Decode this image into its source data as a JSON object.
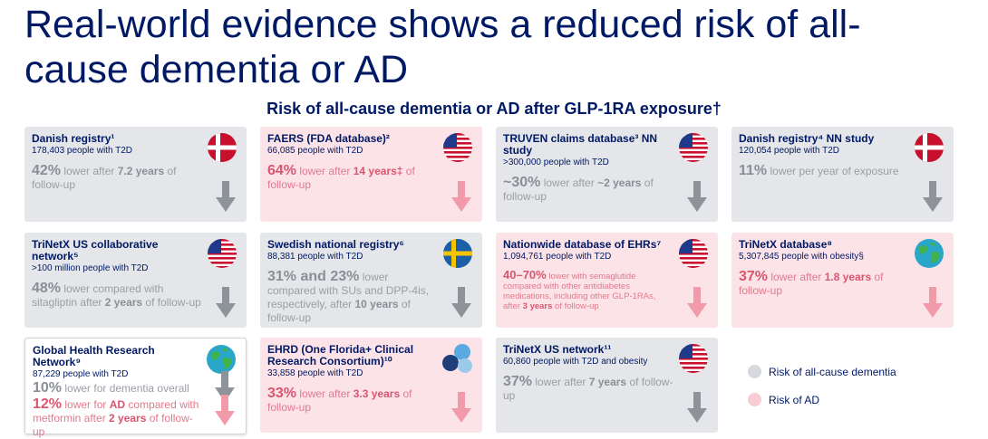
{
  "title": "Real-world evidence shows a reduced risk of all-cause dementia or AD",
  "subtitle": "Risk of all-cause dementia or AD after GLP-1RA exposure†",
  "cards": [
    {
      "name": "Danish registry¹",
      "detail": "178,403 people with T2D",
      "icon": "denmark",
      "results": [
        {
          "risk": "dementia",
          "segments": [
            "42%",
            " lower after ",
            "7.2 years",
            " of follow-up"
          ]
        }
      ]
    },
    {
      "name": "FAERS (FDA database)²",
      "detail": "66,085 people with T2D",
      "icon": "usa",
      "results": [
        {
          "risk": "AD",
          "segments": [
            "64%",
            " lower after ",
            "14 years‡",
            " of follow-up"
          ]
        }
      ]
    },
    {
      "name": "TRUVEN claims database³ NN study",
      "detail": ">300,000 people with T2D",
      "icon": "usa",
      "results": [
        {
          "risk": "dementia",
          "segments": [
            "~30%",
            " lower after ",
            "~2 years",
            " of follow-up"
          ]
        }
      ]
    },
    {
      "name": "Danish registry⁴ NN study",
      "detail": "120,054 people with T2D",
      "icon": "denmark",
      "results": [
        {
          "risk": "dementia",
          "segments": [
            "11%",
            " lower per year of exposure"
          ]
        }
      ]
    },
    {
      "name": "TriNetX US collaborative network⁵",
      "detail": ">100 million people with T2D",
      "icon": "usa",
      "results": [
        {
          "risk": "dementia",
          "segments": [
            "48%",
            " lower compared with sitagliptin after ",
            "2 years",
            " of follow-up"
          ]
        }
      ]
    },
    {
      "name": "Swedish national registry⁶",
      "detail": "88,381 people with T2D",
      "icon": "sweden",
      "results": [
        {
          "risk": "dementia",
          "segments": [
            "31% and 23%",
            " lower compared with SUs and DPP-4is, respectively, after ",
            "10 years",
            " of follow-up"
          ]
        }
      ]
    },
    {
      "name": "Nationwide database of EHRs⁷",
      "detail": "1,094,761 people with T2D",
      "icon": "usa",
      "results": [
        {
          "risk": "AD",
          "segments": [
            "40–70%",
            " lower with semaglutide compared with other antidiabetes medications, including other GLP-1RAs, after ",
            "3 years",
            " of follow-up"
          ]
        }
      ]
    },
    {
      "name": "TriNetX database⁸",
      "detail": "5,307,845 people with obesity§",
      "icon": "globe",
      "results": [
        {
          "risk": "AD",
          "segments": [
            "37%",
            " lower after ",
            "1.8 years",
            " of follow-up"
          ]
        }
      ]
    },
    {
      "name": "Global Health Research Network⁹",
      "detail": "87,229 people with T2D",
      "icon": "globe",
      "results": [
        {
          "risk": "dementia",
          "segments": [
            "10%",
            " lower for dementia overall"
          ]
        },
        {
          "risk": "AD",
          "segments": [
            "12%",
            " lower for ",
            "AD",
            " compared with metformin after ",
            "2 years",
            " of follow-up"
          ]
        }
      ]
    },
    {
      "name": "EHRD (One Florida+ Clinical Research Consortium)¹⁰",
      "detail": "33,858 people with T2D",
      "icon": "ehrd",
      "results": [
        {
          "risk": "AD",
          "segments": [
            "33%",
            " lower after ",
            "3.3 years",
            " of follow-up"
          ]
        }
      ]
    },
    {
      "name": "TriNetX US network¹¹",
      "detail": "60,860 people with T2D and obesity",
      "icon": "usa",
      "results": [
        {
          "risk": "dementia",
          "segments": [
            "37%",
            " lower after ",
            "7 years",
            " of follow-up"
          ]
        }
      ]
    }
  ],
  "legend": [
    {
      "risk": "dementia",
      "label": "Risk of all-cause dementia"
    },
    {
      "risk": "AD",
      "label": "Risk of AD"
    }
  ]
}
